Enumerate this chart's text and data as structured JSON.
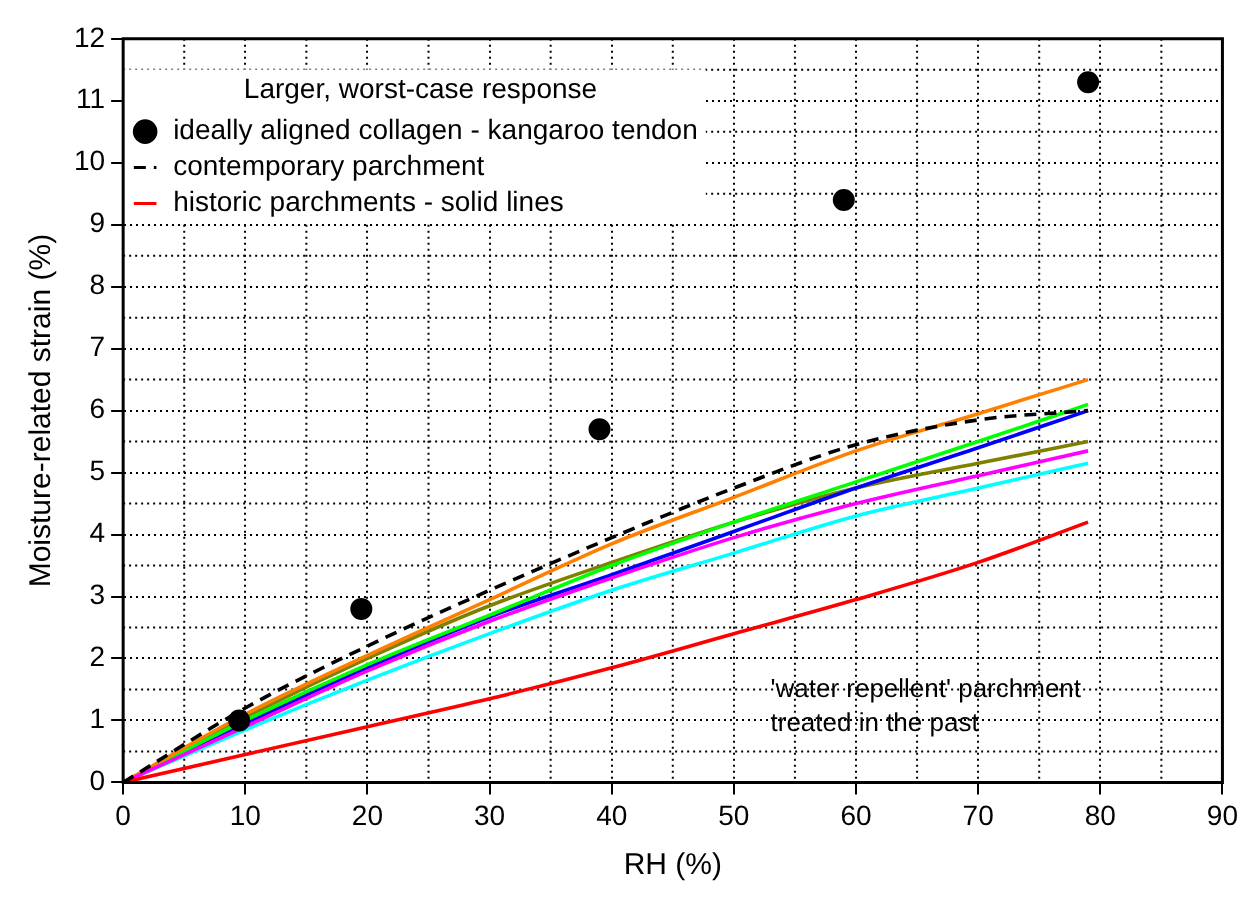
{
  "chart_data": {
    "type": "line",
    "xlabel": "RH (%)",
    "ylabel": "Moisture-related strain (%)",
    "legend_title": "Larger, worst-case response",
    "xlim": [
      0,
      90
    ],
    "xticks": [
      0,
      10,
      20,
      30,
      40,
      50,
      60,
      70,
      80,
      90
    ],
    "ylim": [
      0,
      12
    ],
    "yticks": [
      0,
      1,
      2,
      3,
      4,
      5,
      6,
      7,
      8,
      9,
      10,
      11,
      12
    ],
    "grid": true,
    "legend": "top left",
    "annotations": [
      "'water repellent' parchment\ntreated in the past"
    ],
    "series": [
      {
        "name": "ideally aligned collagen - kangaroo tendon",
        "type": "scatter",
        "marker": "circle",
        "color": "#000000",
        "x": [
          9.5,
          19.5,
          39,
          59,
          79
        ],
        "values": [
          1.0,
          2.8,
          5.7,
          9.4,
          11.3
        ]
      },
      {
        "name": "contemporary parchment",
        "line_style": "dashed",
        "color": "#000000",
        "x": [
          0,
          10,
          20,
          30,
          40,
          50,
          60,
          70,
          79
        ],
        "values": [
          0,
          1.2,
          2.2,
          3.1,
          3.95,
          4.75,
          5.45,
          5.85,
          6.0
        ]
      },
      {
        "name": "historic parchments - solid lines",
        "color": "#ff0000",
        "x": [
          0,
          10,
          20,
          30,
          40,
          50,
          60,
          70,
          79
        ],
        "values": [
          0,
          0.45,
          0.9,
          1.35,
          1.85,
          2.4,
          2.95,
          3.55,
          4.2
        ]
      },
      {
        "color": "#ff00ff",
        "x": [
          0,
          10,
          20,
          30,
          40,
          50,
          60,
          70,
          79
        ],
        "values": [
          0,
          0.9,
          1.8,
          2.6,
          3.3,
          3.95,
          4.5,
          4.95,
          5.35
        ]
      },
      {
        "color": "#ff8000",
        "x": [
          0,
          10,
          20,
          30,
          40,
          50,
          60,
          70,
          79
        ],
        "values": [
          0,
          1.1,
          2.05,
          2.95,
          3.85,
          4.6,
          5.35,
          5.95,
          6.5
        ]
      },
      {
        "color": "#00ff00",
        "x": [
          0,
          10,
          20,
          30,
          40,
          50,
          60,
          70,
          79
        ],
        "values": [
          0,
          1.0,
          1.9,
          2.7,
          3.5,
          4.2,
          4.85,
          5.5,
          6.1
        ]
      },
      {
        "color": "#0000ff",
        "x": [
          0,
          10,
          20,
          30,
          40,
          50,
          60,
          70,
          79
        ],
        "values": [
          0,
          0.95,
          1.85,
          2.67,
          3.35,
          4.05,
          4.75,
          5.4,
          6.0
        ]
      },
      {
        "color": "#808000",
        "x": [
          0,
          10,
          20,
          30,
          40,
          50,
          60,
          70,
          79
        ],
        "values": [
          0,
          1.05,
          2.0,
          2.85,
          3.55,
          4.2,
          4.75,
          5.15,
          5.5
        ]
      },
      {
        "color": "#00ffff",
        "x": [
          0,
          10,
          20,
          30,
          40,
          50,
          60,
          70,
          79
        ],
        "values": [
          0,
          0.85,
          1.65,
          2.4,
          3.1,
          3.7,
          4.3,
          4.75,
          5.15
        ]
      }
    ]
  }
}
